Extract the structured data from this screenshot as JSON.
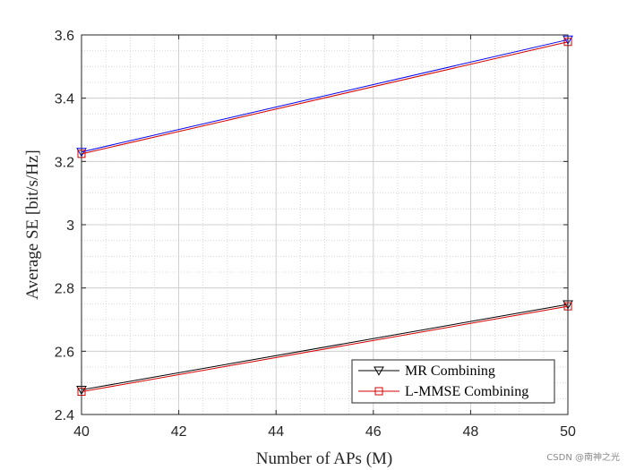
{
  "chart_data": {
    "type": "line",
    "xlabel": "Number of APs (M)",
    "ylabel": "Average SE [bit/s/Hz]",
    "xlim": [
      40,
      50
    ],
    "ylim": [
      2.4,
      3.6
    ],
    "xticks": [
      40,
      42,
      44,
      46,
      48,
      50
    ],
    "xtick_labels": [
      "40",
      "42",
      "44",
      "46",
      "48",
      "50"
    ],
    "yticks": [
      2.4,
      2.6,
      2.8,
      3.0,
      3.2,
      3.4,
      3.6
    ],
    "ytick_labels": [
      "2.4",
      "2.6",
      "2.8",
      "3",
      "3.2",
      "3.4",
      "3.6"
    ],
    "grid": true,
    "minor_grid": true,
    "legend_placement": "bottom-right",
    "legend": [
      {
        "label": "MR Combining",
        "color": "#000000",
        "marker": "triangle-down"
      },
      {
        "label": "L-MMSE Combining",
        "color": "#d40000",
        "marker": "square"
      }
    ],
    "series": [
      {
        "color": "#000000",
        "marker": "triangle-down",
        "x": [
          40,
          50
        ],
        "y": [
          2.478,
          2.748
        ]
      },
      {
        "color": "#d40000",
        "marker": "square",
        "x": [
          40,
          50
        ],
        "y": [
          2.472,
          2.742
        ]
      },
      {
        "color": "#0000ff",
        "marker": "triangle-down",
        "x": [
          40,
          50
        ],
        "y": [
          3.23,
          3.585
        ]
      },
      {
        "color": "#d40000",
        "marker": "square",
        "x": [
          40,
          50
        ],
        "y": [
          3.224,
          3.578
        ]
      }
    ]
  },
  "watermark": "CSDN @南神之光"
}
